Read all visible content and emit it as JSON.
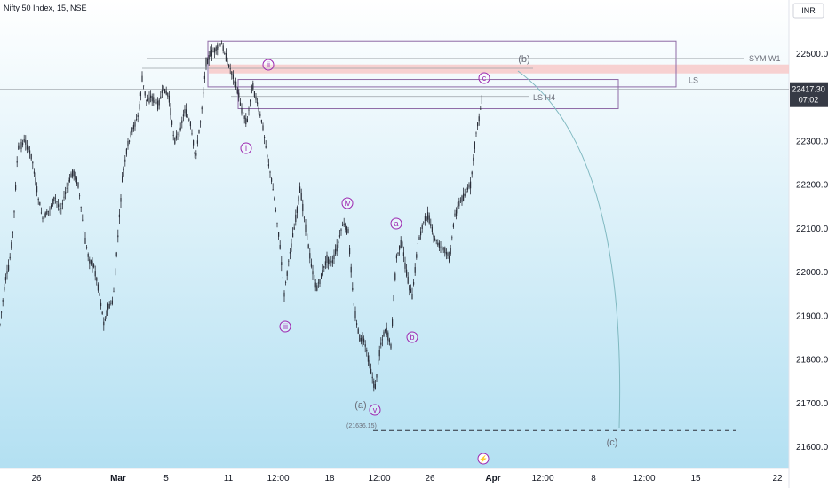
{
  "header": {
    "title": "Nifty 50 Index, 15, NSE"
  },
  "price_axis": {
    "currency": "INR",
    "last_price": "22417.30",
    "countdown": "07:02"
  },
  "levels": {
    "sym_w1": "SYM W1",
    "ls": "LS",
    "ls_h4": "LS H4"
  },
  "waves": {
    "i": "i",
    "ii": "ii",
    "iii": "iii",
    "iv": "iv",
    "v": "v",
    "a": "a",
    "b": "b",
    "c": "c",
    "big_a": "(a)",
    "big_b": "(b)",
    "big_c": "(c)",
    "target_label": "(21636.15)"
  },
  "colors": {
    "background_top": "#ffffff",
    "background_bottom": "#b3e0f2",
    "candle": "#2a2e39",
    "wave_label": "#9c27b0",
    "zone_border": "#8e6aa6",
    "ls_band": "#f7c9c9",
    "arc": "#7fb8c0",
    "axis_text": "#131722",
    "price_badge": "#363a45"
  },
  "chart_data": {
    "type": "candlestick",
    "title": "Nifty 50 Index, 15, NSE",
    "y_unit": "INR",
    "ylim": [
      21555,
      22620
    ],
    "x_tick_labels": [
      "26",
      "Mar",
      "5",
      "11",
      "12:00",
      "18",
      "12:00",
      "26",
      "Apr",
      "12:00",
      "8",
      "12:00",
      "15",
      "22"
    ],
    "y_tick_labels": [
      "22500.00",
      "22400.00",
      "22300.00",
      "22200.00",
      "22100.00",
      "22000.00",
      "21900.00",
      "21800.00",
      "21700.00",
      "21600.00"
    ],
    "y_ticks": [
      22500,
      22400,
      22300,
      22200,
      22100,
      22000,
      21900,
      21800,
      21700,
      21600
    ],
    "price_path": [
      [
        0,
        21880
      ],
      [
        6,
        21980
      ],
      [
        10,
        22010
      ],
      [
        15,
        22100
      ],
      [
        20,
        22280
      ],
      [
        28,
        22300
      ],
      [
        36,
        22260
      ],
      [
        42,
        22180
      ],
      [
        48,
        22120
      ],
      [
        55,
        22140
      ],
      [
        62,
        22170
      ],
      [
        68,
        22140
      ],
      [
        75,
        22190
      ],
      [
        82,
        22230
      ],
      [
        88,
        22200
      ],
      [
        95,
        22080
      ],
      [
        100,
        22030
      ],
      [
        106,
        22010
      ],
      [
        112,
        21950
      ],
      [
        117,
        21880
      ],
      [
        122,
        21920
      ],
      [
        127,
        21930
      ],
      [
        132,
        22060
      ],
      [
        138,
        22220
      ],
      [
        144,
        22290
      ],
      [
        150,
        22330
      ],
      [
        156,
        22360
      ],
      [
        160,
        22440
      ],
      [
        165,
        22390
      ],
      [
        170,
        22400
      ],
      [
        178,
        22380
      ],
      [
        184,
        22420
      ],
      [
        190,
        22400
      ],
      [
        196,
        22300
      ],
      [
        202,
        22320
      ],
      [
        208,
        22370
      ],
      [
        214,
        22340
      ],
      [
        220,
        22260
      ],
      [
        226,
        22350
      ],
      [
        232,
        22480
      ],
      [
        238,
        22500
      ],
      [
        244,
        22510
      ],
      [
        250,
        22520
      ],
      [
        256,
        22480
      ],
      [
        262,
        22450
      ],
      [
        268,
        22410
      ],
      [
        272,
        22370
      ],
      [
        278,
        22340
      ],
      [
        284,
        22430
      ],
      [
        290,
        22380
      ],
      [
        296,
        22330
      ],
      [
        302,
        22250
      ],
      [
        308,
        22180
      ],
      [
        314,
        22080
      ],
      [
        320,
        21950
      ],
      [
        326,
        22040
      ],
      [
        332,
        22110
      ],
      [
        338,
        22190
      ],
      [
        344,
        22100
      ],
      [
        350,
        22020
      ],
      [
        356,
        21960
      ],
      [
        362,
        21990
      ],
      [
        368,
        22030
      ],
      [
        374,
        22020
      ],
      [
        380,
        22060
      ],
      [
        386,
        22110
      ],
      [
        392,
        22090
      ],
      [
        398,
        21930
      ],
      [
        404,
        21850
      ],
      [
        410,
        21840
      ],
      [
        416,
        21790
      ],
      [
        422,
        21730
      ],
      [
        428,
        21830
      ],
      [
        434,
        21870
      ],
      [
        440,
        21830
      ],
      [
        446,
        22030
      ],
      [
        452,
        22070
      ],
      [
        458,
        21990
      ],
      [
        464,
        21940
      ],
      [
        470,
        22060
      ],
      [
        476,
        22110
      ],
      [
        482,
        22130
      ],
      [
        488,
        22080
      ],
      [
        494,
        22060
      ],
      [
        500,
        22050
      ],
      [
        506,
        22030
      ],
      [
        512,
        22130
      ],
      [
        518,
        22160
      ],
      [
        524,
        22180
      ],
      [
        530,
        22200
      ],
      [
        536,
        22320
      ],
      [
        540,
        22360
      ],
      [
        544,
        22417
      ]
    ],
    "annotations": [
      {
        "label": "i",
        "price": 22290
      },
      {
        "label": "ii",
        "price": 22472
      },
      {
        "label": "iii",
        "price": 21890
      },
      {
        "label": "iv",
        "price": 22150
      },
      {
        "label": "v",
        "price": 21680
      },
      {
        "label": "a",
        "price": 22090
      },
      {
        "label": "b",
        "price": 21850
      },
      {
        "label": "c",
        "price": 22440
      },
      {
        "label": "(a)",
        "price": 21690
      },
      {
        "label": "(b)",
        "price": 22485
      },
      {
        "label": "(c)",
        "price": 21600
      }
    ],
    "levels": [
      {
        "name": "SYM W1",
        "price": 22488
      },
      {
        "name": "LS",
        "price": 22464
      },
      {
        "name": "LS H4",
        "price": 22405
      },
      {
        "name": "target",
        "price": 21636.15
      }
    ],
    "zones": [
      {
        "name": "upper-supply-zone",
        "top": 22528,
        "bottom": 22423
      },
      {
        "name": "ls-h4-zone",
        "top": 22440,
        "bottom": 22373
      }
    ],
    "last_price": 22417.3,
    "grid": false,
    "legend": "none"
  }
}
